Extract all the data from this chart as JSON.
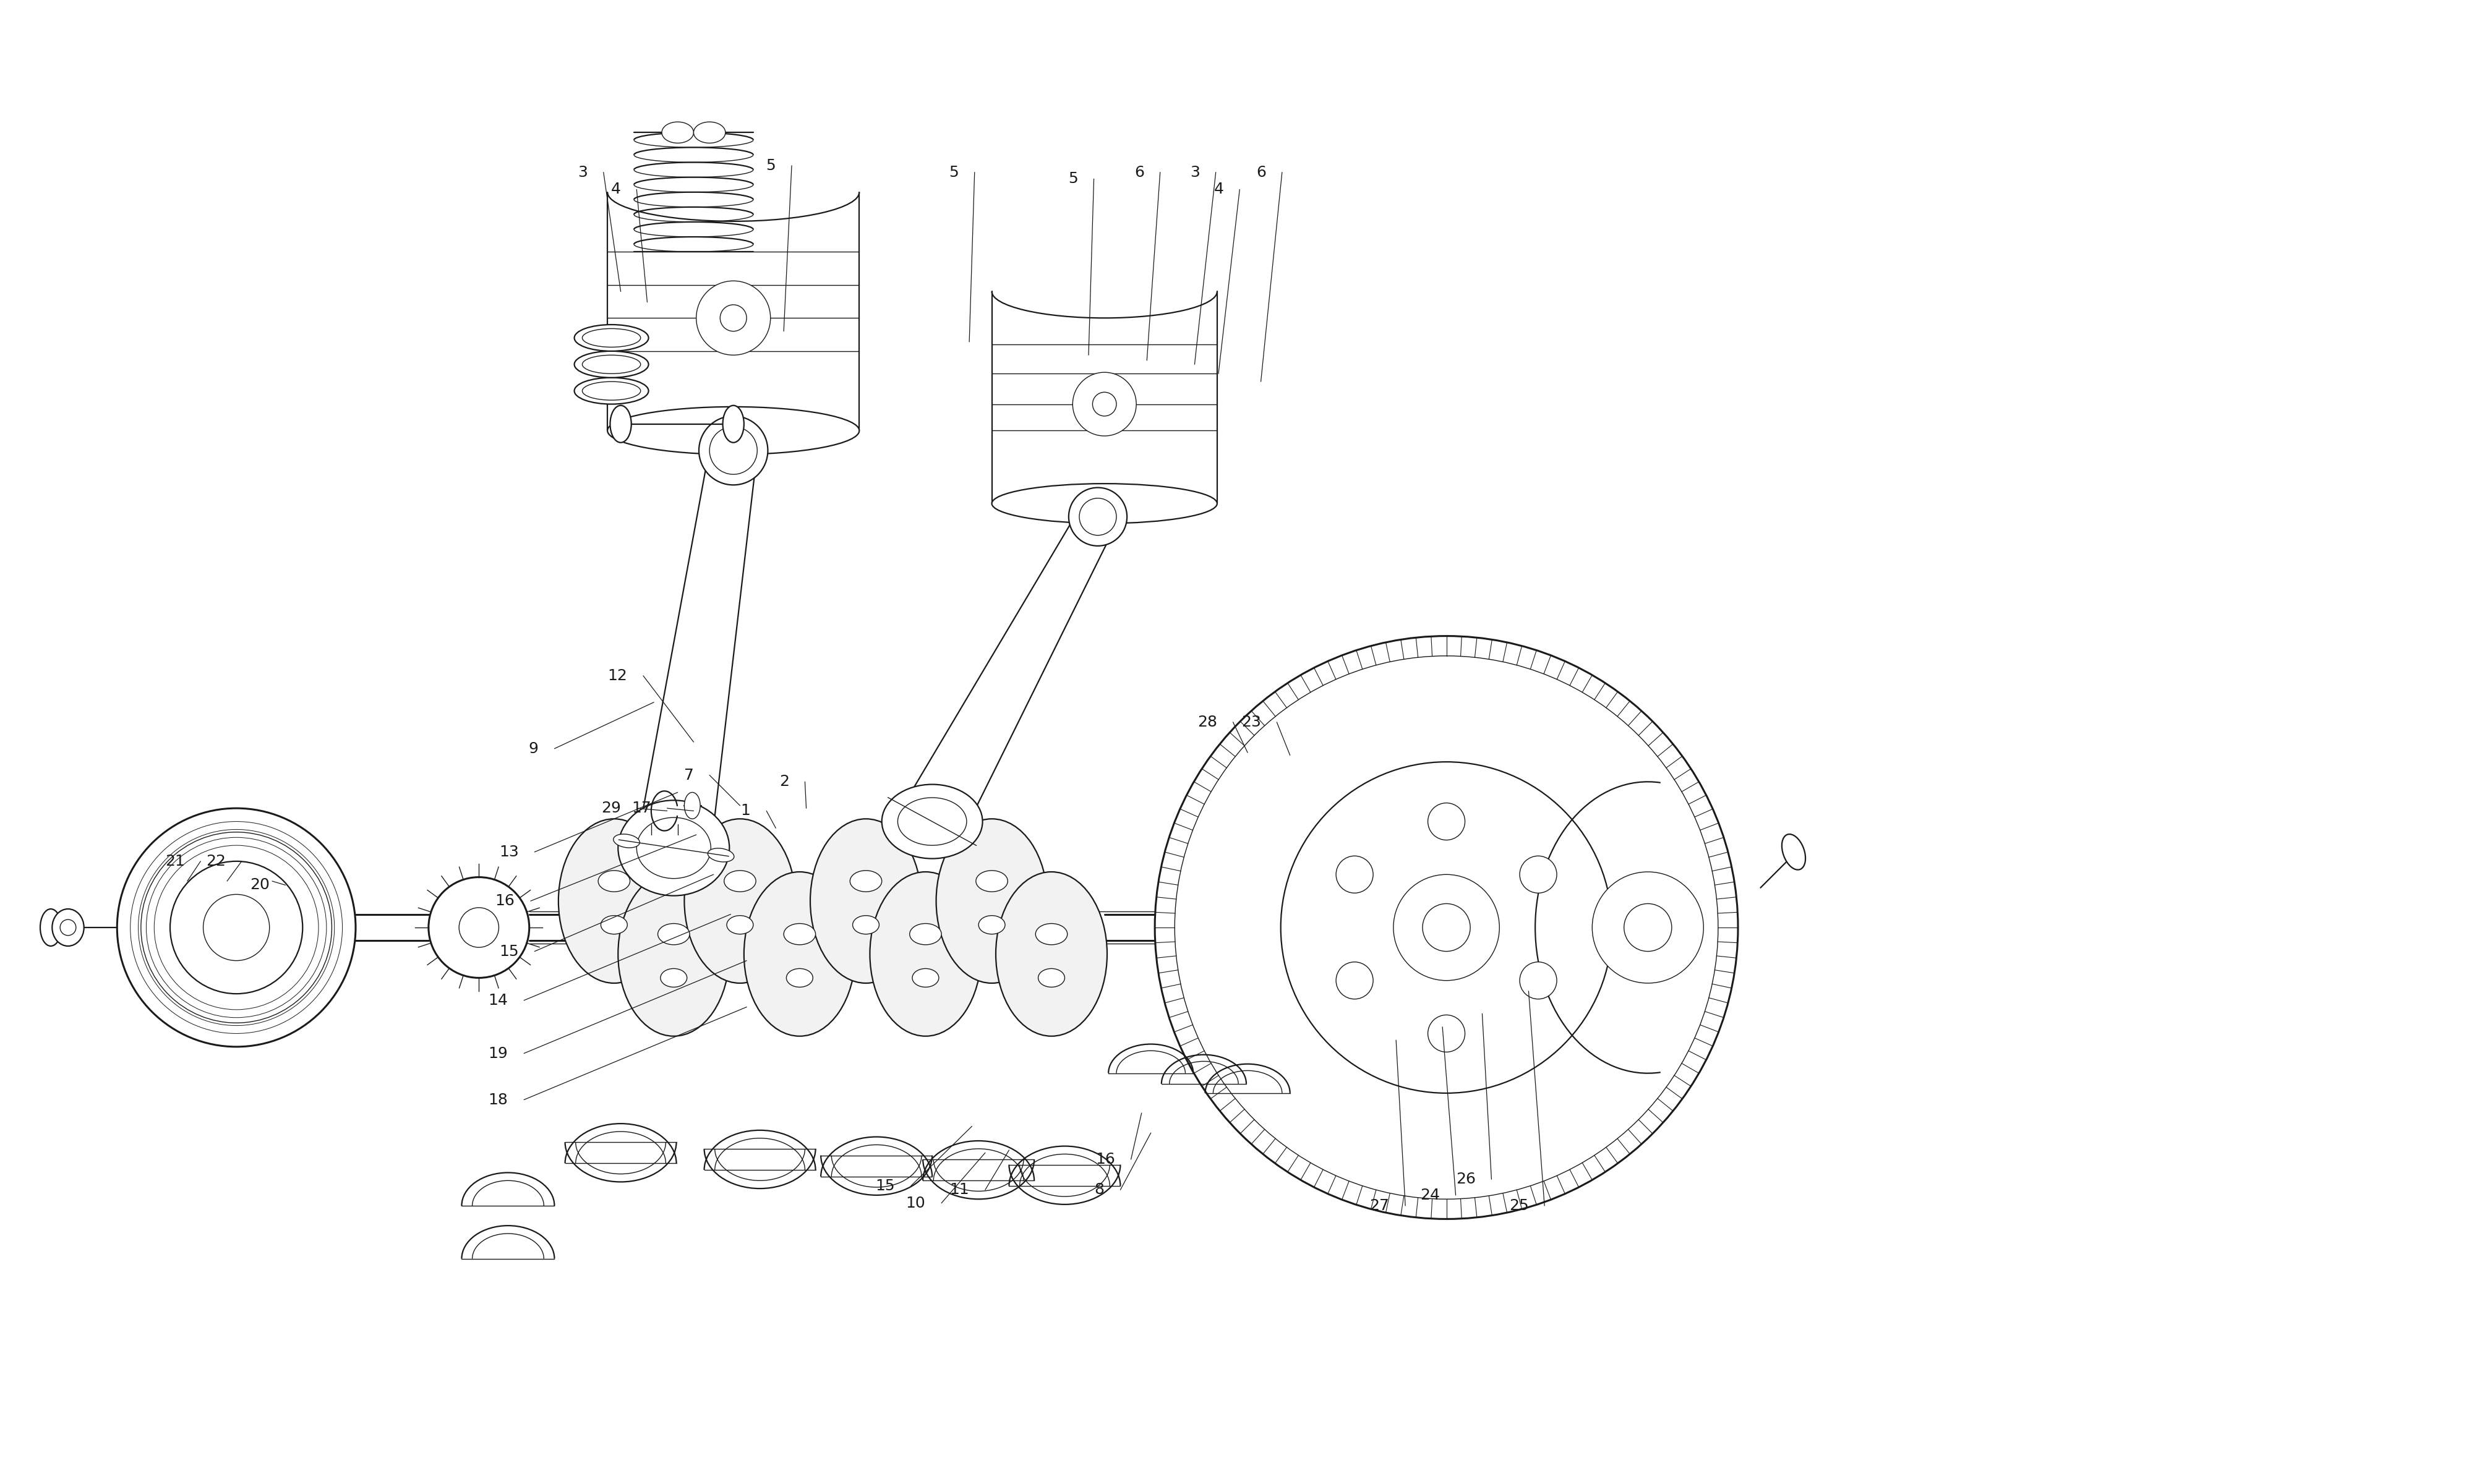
{
  "bg_color": "#ffffff",
  "line_color": "#1a1a1a",
  "text_color": "#1a1a1a",
  "fig_width": 40,
  "fig_height": 24,
  "lw_main": 2.2,
  "lw_med": 1.6,
  "lw_thin": 1.0,
  "label_fs": 18,
  "xmin": 0,
  "xmax": 1840,
  "ymin": 0,
  "ymax": 1120,
  "annotations": [
    [
      "18",
      370,
      830,
      550,
      760
    ],
    [
      "19",
      370,
      795,
      550,
      725
    ],
    [
      "14",
      370,
      755,
      538,
      690
    ],
    [
      "15",
      378,
      718,
      525,
      660
    ],
    [
      "16",
      375,
      680,
      512,
      630
    ],
    [
      "13",
      378,
      643,
      498,
      598
    ],
    [
      "9",
      393,
      565,
      480,
      530
    ],
    [
      "12",
      460,
      510,
      510,
      560
    ],
    [
      "7",
      510,
      585,
      545,
      608
    ],
    [
      "29",
      455,
      610,
      490,
      612
    ],
    [
      "17",
      478,
      610,
      510,
      612
    ],
    [
      "1",
      553,
      612,
      572,
      625
    ],
    [
      "2",
      582,
      590,
      595,
      610
    ],
    [
      "15",
      662,
      895,
      720,
      850
    ],
    [
      "10",
      685,
      908,
      730,
      870
    ],
    [
      "11",
      718,
      898,
      748,
      868
    ],
    [
      "8",
      820,
      898,
      855,
      855
    ],
    [
      "16",
      828,
      875,
      848,
      840
    ],
    [
      "27",
      1035,
      910,
      1040,
      785
    ],
    [
      "24",
      1073,
      902,
      1075,
      775
    ],
    [
      "26",
      1100,
      890,
      1105,
      765
    ],
    [
      "25",
      1140,
      910,
      1140,
      748
    ],
    [
      "23",
      938,
      545,
      960,
      570
    ],
    [
      "28",
      905,
      545,
      928,
      568
    ],
    [
      "21",
      126,
      650,
      128,
      665
    ],
    [
      "22",
      157,
      650,
      158,
      665
    ],
    [
      "20",
      190,
      668,
      192,
      665
    ],
    [
      "3",
      430,
      130,
      455,
      220
    ],
    [
      "4",
      455,
      143,
      475,
      228
    ],
    [
      "5",
      572,
      125,
      578,
      250
    ],
    [
      "5",
      710,
      130,
      718,
      258
    ],
    [
      "5",
      800,
      135,
      808,
      268
    ],
    [
      "6",
      850,
      130,
      852,
      272
    ],
    [
      "3",
      892,
      130,
      888,
      275
    ],
    [
      "4",
      910,
      143,
      906,
      282
    ],
    [
      "6",
      942,
      130,
      938,
      288
    ]
  ]
}
